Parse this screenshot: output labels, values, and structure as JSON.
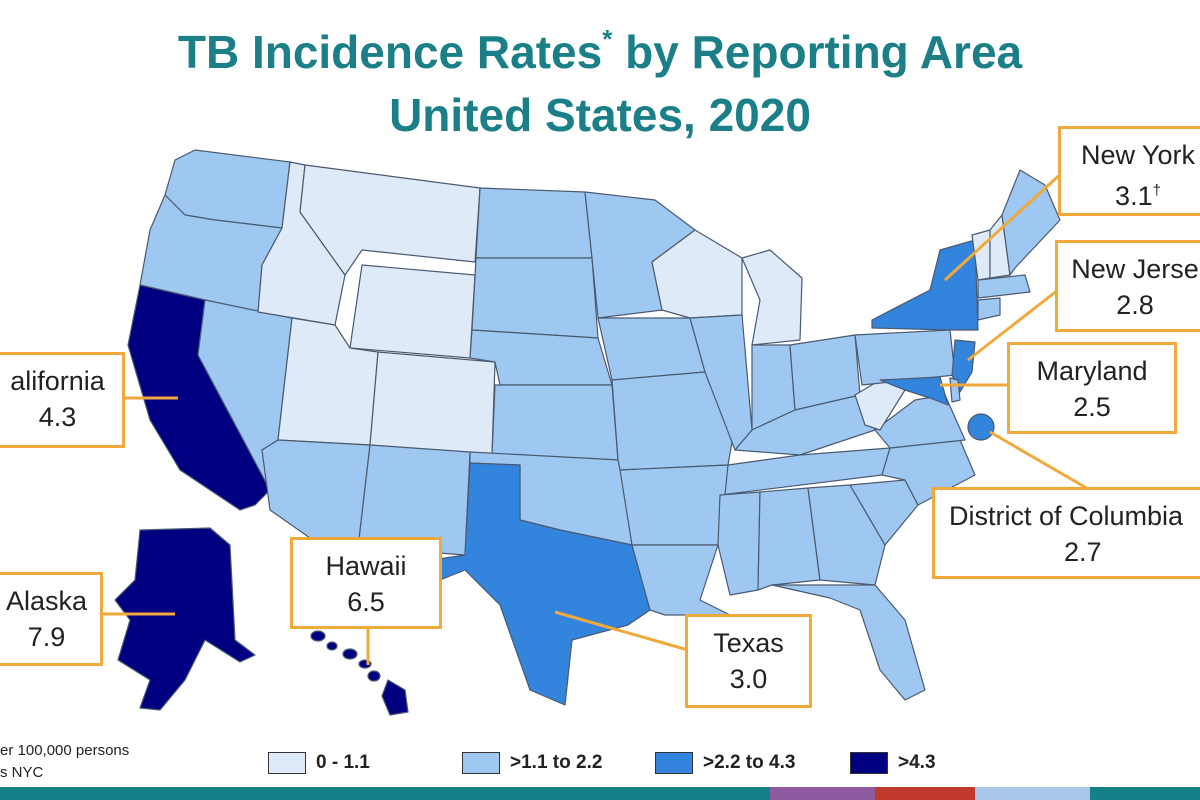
{
  "title": {
    "line1_main": "TB Incidence Rates",
    "line1_mark": "*",
    "line1_rest": " by Reporting Area",
    "line2": "United States, 2020"
  },
  "colors": {
    "title": "#1a7f86",
    "callout_border": "#f2a93b",
    "leader_line": "#f2a93b",
    "class_0": "#deeaf7",
    "class_1": "#9ec8f2",
    "class_2": "#3384dc",
    "class_3": "#000080"
  },
  "legend": [
    {
      "label": "0 - 1.1",
      "color": "#deeaf7"
    },
    {
      "label": ">1.1 to 2.2",
      "color": "#9ec8f2"
    },
    {
      "label": ">2.2 to 4.3",
      "color": "#3384dc"
    },
    {
      "label": ">4.3",
      "color": "#000080"
    }
  ],
  "callouts": {
    "new_york": {
      "name": "New York",
      "rate": "3.1",
      "mark": "†"
    },
    "new_jersey": {
      "name": "New Jerse",
      "rate": "2.8"
    },
    "maryland": {
      "name": "Maryland",
      "rate": "2.5"
    },
    "dc": {
      "name": "District of Columbia",
      "rate": "2.7"
    },
    "california": {
      "name": "alifornia",
      "rate": "4.3"
    },
    "hawaii": {
      "name": "Hawaii",
      "rate": "6.5"
    },
    "alaska": {
      "name": "Alaska",
      "rate": "7.9"
    },
    "texas": {
      "name": "Texas",
      "rate": "3.0"
    }
  },
  "footnotes": {
    "line1": "er 100,000  persons",
    "line2": "s NYC"
  },
  "bottom_bar_colors": [
    "#13808a",
    "#8e5aa0",
    "#c23a2b",
    "#a9c6e8",
    "#13808a"
  ]
}
